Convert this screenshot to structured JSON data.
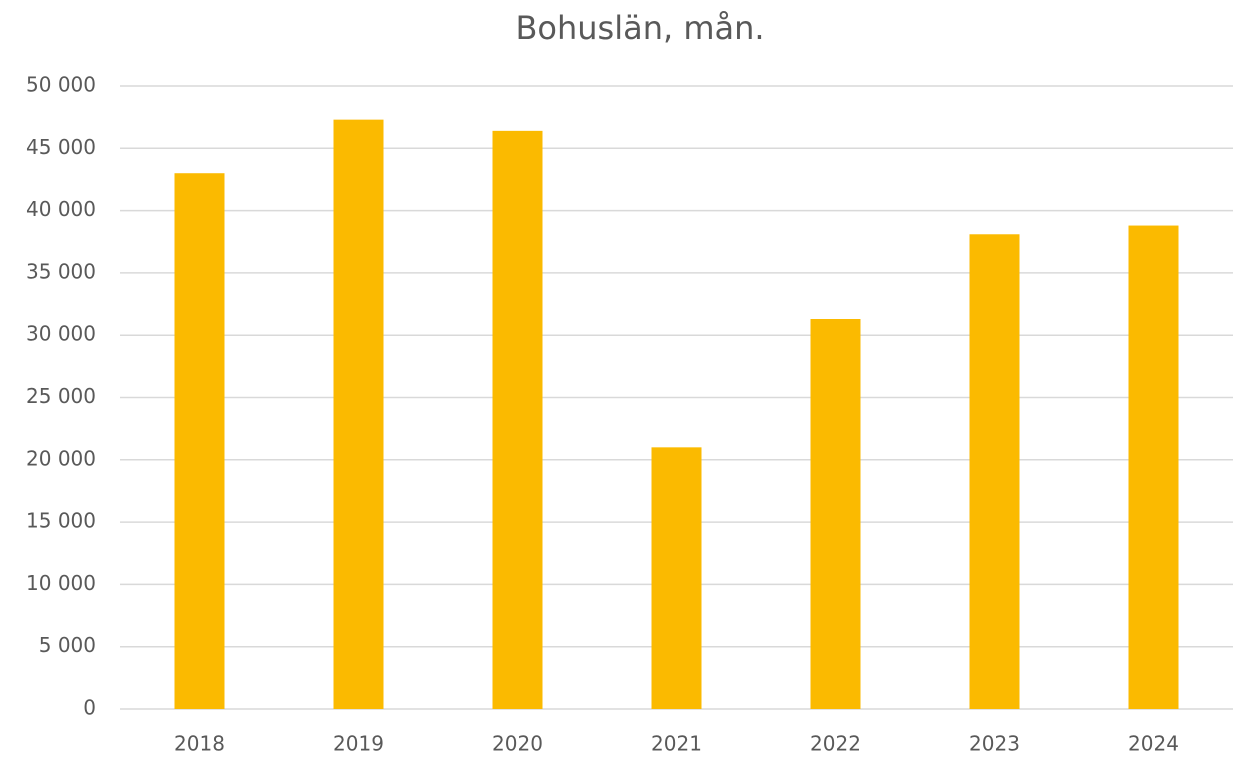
{
  "chart_data": {
    "type": "bar",
    "title": "Bohuslän, mån.",
    "categories": [
      "2018",
      "2019",
      "2020",
      "2021",
      "2022",
      "2023",
      "2024"
    ],
    "values": [
      43000,
      47300,
      46400,
      21000,
      31300,
      38100,
      38800
    ],
    "color": "#fbba00",
    "ylim": [
      0,
      50000
    ],
    "yticks": [
      0,
      {
        "value": 5000,
        "label": "5 000"
      },
      {
        "value": 10000,
        "label": "10 000"
      },
      {
        "value": 15000,
        "label": "15 000"
      },
      {
        "value": 20000,
        "label": "20 000"
      },
      {
        "value": 25000,
        "label": "25 000"
      },
      {
        "value": 30000,
        "label": "30 000"
      },
      {
        "value": 35000,
        "label": "35 000"
      },
      {
        "value": 40000,
        "label": "40 000"
      },
      {
        "value": 45000,
        "label": "45 000"
      },
      {
        "value": 50000,
        "label": "50 000"
      }
    ],
    "grid": true
  }
}
